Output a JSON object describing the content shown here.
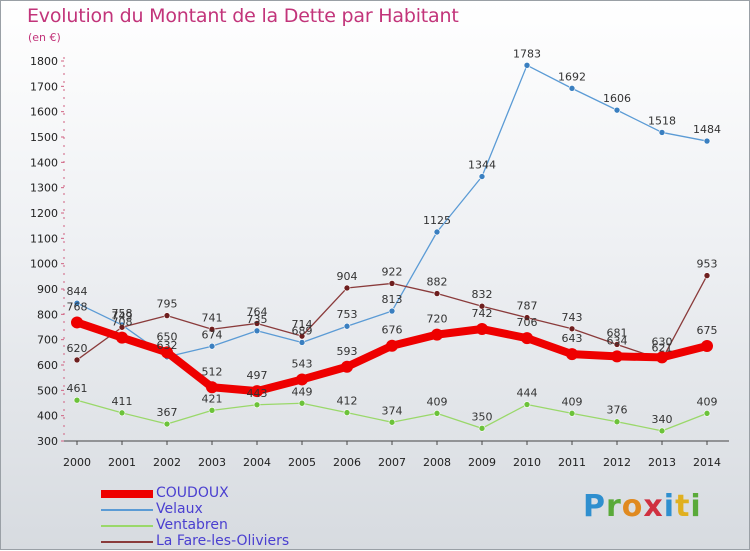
{
  "title": "Evolution du Montant de la Dette par Habitant",
  "subtitle": "(en €)",
  "logo": {
    "text": "Proxiti",
    "letters": [
      "P",
      "r",
      "o",
      "x",
      "i",
      "t",
      "i"
    ]
  },
  "chart_data": {
    "type": "line",
    "title": "Evolution du Montant de la Dette par Habitant",
    "subtitle": "(en €)",
    "x": [
      2000,
      2001,
      2002,
      2003,
      2004,
      2005,
      2006,
      2007,
      2008,
      2009,
      2010,
      2011,
      2012,
      2013,
      2014
    ],
    "ylim": [
      300,
      1800
    ],
    "yticks": [
      300,
      400,
      500,
      600,
      700,
      800,
      900,
      1000,
      1100,
      1200,
      1300,
      1400,
      1500,
      1600,
      1700,
      1800
    ],
    "grid": false,
    "legend_position": "bottom-left",
    "series": [
      {
        "name": "Velaux",
        "color": "#5b9bd5",
        "marker": "#3a7fc0",
        "thick": false,
        "values": [
          844,
          758,
          632,
          674,
          735,
          689,
          753,
          813,
          1125,
          1344,
          1783,
          1692,
          1606,
          1518,
          1484
        ]
      },
      {
        "name": "Ventabren",
        "color": "#9ad86a",
        "marker": "#6cc23a",
        "thick": false,
        "values": [
          461,
          411,
          367,
          421,
          443,
          449,
          412,
          374,
          409,
          350,
          444,
          409,
          376,
          340,
          409
        ]
      },
      {
        "name": "La Fare-les-Oliviers",
        "color": "#8a3b3b",
        "marker": "#6e1f1f",
        "thick": false,
        "values": [
          620,
          749,
          795,
          741,
          764,
          714,
          904,
          922,
          882,
          832,
          787,
          743,
          681,
          621,
          953
        ]
      },
      {
        "name": "COUDOUX",
        "color": "#ee0000",
        "marker": "#ee0000",
        "thick": true,
        "values": [
          768,
          708,
          650,
          512,
          497,
          543,
          593,
          676,
          720,
          742,
          706,
          643,
          634,
          630,
          675
        ]
      }
    ],
    "legend_order": [
      "COUDOUX",
      "Velaux",
      "Ventabren",
      "La Fare-les-Oliviers"
    ]
  }
}
